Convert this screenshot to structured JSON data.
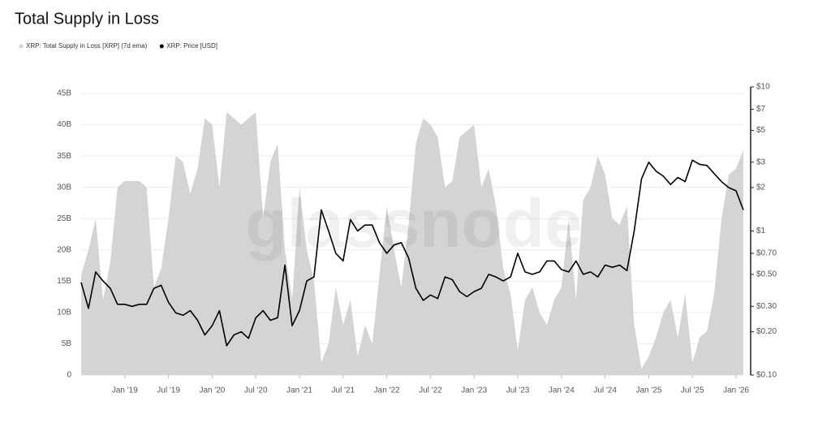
{
  "chart_data": {
    "type": "area-line",
    "title": "Total Supply in Loss",
    "watermark": "glassnode",
    "x": [
      "2018-07",
      "2018-08",
      "2018-09",
      "2018-10",
      "2018-11",
      "2018-12",
      "2019-01",
      "2019-02",
      "2019-03",
      "2019-04",
      "2019-05",
      "2019-06",
      "2019-07",
      "2019-08",
      "2019-09",
      "2019-10",
      "2019-11",
      "2019-12",
      "2020-01",
      "2020-02",
      "2020-03",
      "2020-04",
      "2020-05",
      "2020-06",
      "2020-07",
      "2020-08",
      "2020-09",
      "2020-10",
      "2020-11",
      "2020-12",
      "2021-01",
      "2021-02",
      "2021-03",
      "2021-04",
      "2021-05",
      "2021-06",
      "2021-07",
      "2021-08",
      "2021-09",
      "2021-10",
      "2021-11",
      "2021-12",
      "2022-01",
      "2022-02",
      "2022-03",
      "2022-04",
      "2022-05",
      "2022-06",
      "2022-07",
      "2022-08",
      "2022-09",
      "2022-10",
      "2022-11",
      "2022-12",
      "2023-01",
      "2023-02",
      "2023-03",
      "2023-04",
      "2023-05",
      "2023-06",
      "2023-07",
      "2023-08",
      "2023-09",
      "2023-10",
      "2023-11",
      "2023-12",
      "2024-01",
      "2024-02",
      "2024-03",
      "2024-04",
      "2024-05",
      "2024-06",
      "2024-07",
      "2024-08",
      "2024-09",
      "2024-10",
      "2024-11",
      "2024-12",
      "2025-01",
      "2025-02",
      "2025-03",
      "2025-04",
      "2025-05",
      "2025-06",
      "2025-07",
      "2025-08",
      "2025-09",
      "2025-10",
      "2025-11",
      "2025-12",
      "2026-01",
      "2026-02"
    ],
    "xlim": [
      "2018-07",
      "2026-02"
    ],
    "xticks": [
      {
        "value": "2019-01",
        "label": "Jan '19"
      },
      {
        "value": "2019-07",
        "label": "Jul '19"
      },
      {
        "value": "2020-01",
        "label": "Jan '20"
      },
      {
        "value": "2020-07",
        "label": "Jul '20"
      },
      {
        "value": "2021-01",
        "label": "Jan '21"
      },
      {
        "value": "2021-07",
        "label": "Jul '21"
      },
      {
        "value": "2022-01",
        "label": "Jan '22"
      },
      {
        "value": "2022-07",
        "label": "Jul '22"
      },
      {
        "value": "2023-01",
        "label": "Jan '23"
      },
      {
        "value": "2023-07",
        "label": "Jul '23"
      },
      {
        "value": "2024-01",
        "label": "Jan '24"
      },
      {
        "value": "2024-07",
        "label": "Jul '24"
      },
      {
        "value": "2025-01",
        "label": "Jan '25"
      },
      {
        "value": "2025-07",
        "label": "Jul '25"
      },
      {
        "value": "2026-01",
        "label": "Jan '26"
      }
    ],
    "ylim": [
      0,
      45
    ],
    "yticks": [
      0,
      {
        "value": 5,
        "label": "5B"
      },
      {
        "value": 10,
        "label": "10B"
      },
      {
        "value": 15,
        "label": "15B"
      },
      {
        "value": 20,
        "label": "20B"
      },
      {
        "value": 25,
        "label": "25B"
      },
      {
        "value": 30,
        "label": "30B"
      },
      {
        "value": 35,
        "label": "35B"
      },
      {
        "value": 40,
        "label": "40B"
      },
      {
        "value": 45,
        "label": "45B"
      }
    ],
    "y2lim": [
      0.1,
      10
    ],
    "y2log": true,
    "y2ticks": [
      {
        "value": 0.1,
        "label": "$0.10"
      },
      {
        "value": 0.2,
        "label": "$0.20"
      },
      {
        "value": 0.3,
        "label": "$0.30"
      },
      {
        "value": 0.5,
        "label": "$0.50"
      },
      {
        "value": 0.7,
        "label": "$0.70"
      },
      {
        "value": 1,
        "label": "$1"
      },
      {
        "value": 2,
        "label": "$2"
      },
      {
        "value": 3,
        "label": "$3"
      },
      {
        "value": 5,
        "label": "$5"
      },
      {
        "value": 7,
        "label": "$7"
      },
      {
        "value": 10,
        "label": "$10"
      }
    ],
    "grid": true,
    "series": [
      {
        "name": "XRP: Total Supply in Loss [XRP] (7d ema)",
        "color": "#d4d4d4",
        "kind": "area",
        "values": [
          16,
          20,
          25,
          12,
          18,
          30,
          31,
          31,
          31,
          30,
          14,
          17,
          25,
          35,
          34,
          29,
          33,
          41,
          40,
          30,
          42,
          41,
          40,
          41,
          42,
          25,
          34,
          37,
          20,
          12,
          30,
          20,
          15,
          2,
          5,
          14,
          8,
          12,
          3,
          8,
          5,
          16,
          27,
          20,
          14,
          24,
          37,
          41,
          40,
          38,
          30,
          31,
          38,
          39,
          40,
          30,
          33,
          27,
          17,
          13,
          4,
          12,
          14,
          10,
          8,
          12,
          14,
          25,
          12,
          28,
          30,
          35,
          32,
          25,
          24,
          27,
          8,
          1,
          3,
          6,
          10,
          12,
          6,
          13,
          2,
          6,
          7,
          13,
          25,
          32,
          33,
          36
        ]
      },
      {
        "name": "XRP: Price [USD]",
        "color": "#000000",
        "kind": "line",
        "axis": "y2",
        "values": [
          0.44,
          0.29,
          0.52,
          0.45,
          0.4,
          0.31,
          0.31,
          0.3,
          0.31,
          0.31,
          0.4,
          0.42,
          0.32,
          0.27,
          0.26,
          0.28,
          0.24,
          0.19,
          0.22,
          0.28,
          0.16,
          0.19,
          0.2,
          0.18,
          0.25,
          0.28,
          0.24,
          0.25,
          0.58,
          0.22,
          0.28,
          0.45,
          0.48,
          1.4,
          1.0,
          0.7,
          0.62,
          1.2,
          1.0,
          1.1,
          1.1,
          0.83,
          0.7,
          0.8,
          0.83,
          0.65,
          0.4,
          0.33,
          0.36,
          0.34,
          0.48,
          0.46,
          0.38,
          0.35,
          0.38,
          0.4,
          0.5,
          0.48,
          0.45,
          0.48,
          0.7,
          0.52,
          0.5,
          0.52,
          0.62,
          0.62,
          0.54,
          0.52,
          0.62,
          0.5,
          0.52,
          0.48,
          0.58,
          0.56,
          0.58,
          0.53,
          1.0,
          2.3,
          3.0,
          2.6,
          2.4,
          2.1,
          2.35,
          2.2,
          3.1,
          2.9,
          2.85,
          2.5,
          2.2,
          2.0,
          1.9,
          1.4
        ]
      }
    ]
  }
}
